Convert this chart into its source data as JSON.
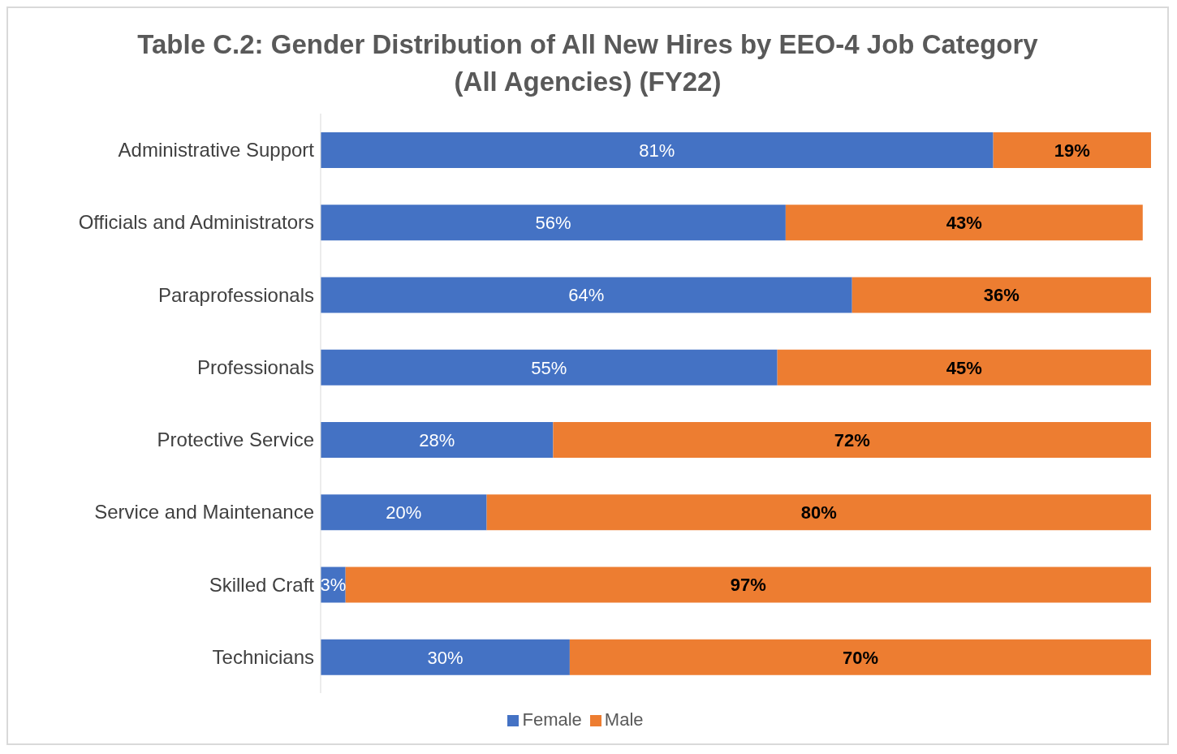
{
  "chart_data": {
    "type": "bar",
    "orientation": "horizontal",
    "stacked": true,
    "title": "Table C.2: Gender Distribution of All New Hires by EEO-4 Job Category\n(All Agencies) (FY22)",
    "categories": [
      "Administrative Support",
      "Officials and Administrators",
      "Paraprofessionals",
      "Professionals",
      "Protective Service",
      "Service and Maintenance",
      "Skilled Craft",
      "Technicians"
    ],
    "series": [
      {
        "name": "Female",
        "color": "#4472c4",
        "values": [
          81,
          56,
          64,
          55,
          28,
          20,
          3,
          30
        ],
        "value_labels": [
          "81%",
          "56%",
          "64%",
          "55%",
          "28%",
          "20%",
          "3%",
          "30%"
        ]
      },
      {
        "name": "Male",
        "color": "#ed7d31",
        "values": [
          19,
          43,
          36,
          45,
          72,
          80,
          97,
          70
        ],
        "value_labels": [
          "19%",
          "43%",
          "36%",
          "45%",
          "72%",
          "80%",
          "97%",
          "70%"
        ]
      }
    ],
    "legend": "bottom"
  }
}
